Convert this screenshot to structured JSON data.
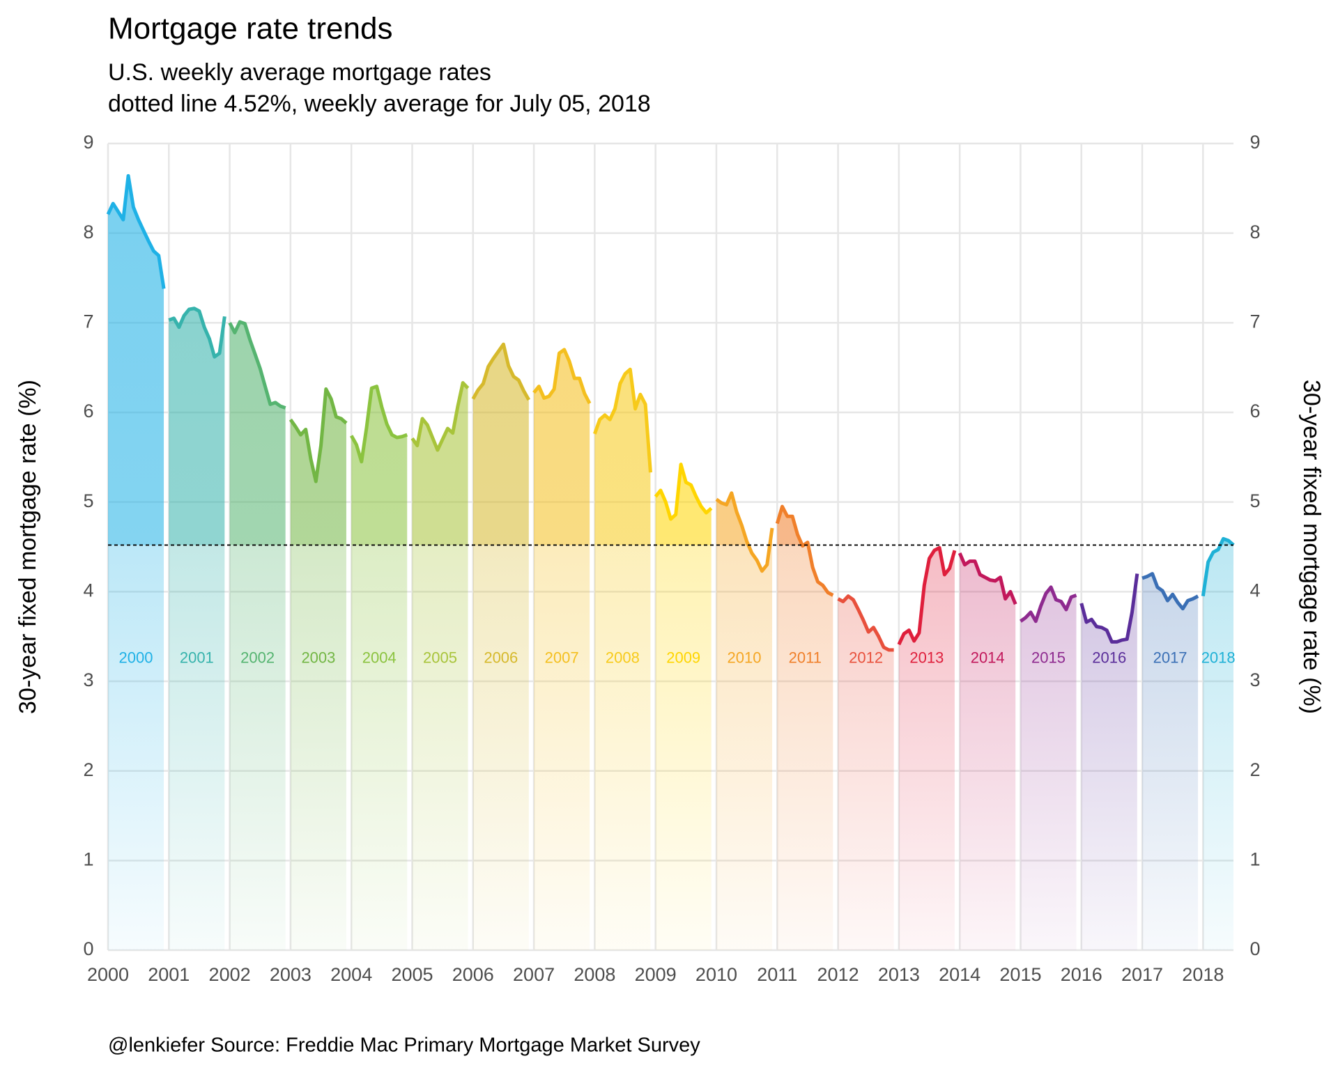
{
  "chart_data": {
    "type": "line",
    "title": "Mortgage rate trends",
    "subtitle": [
      "U.S. weekly average mortgage rates",
      "dotted line 4.52%, weekly average for July 05, 2018"
    ],
    "ylabel": "30-year fixed mortgage rate (%)",
    "y2label": "30-year fixed mortgage rate (%)",
    "caption": "@lenkiefer Source: Freddie Mac Primary Mortgage Market Survey",
    "reference": {
      "value": 4.52
    },
    "xlim": [
      2000,
      2018.5
    ],
    "xticks": [
      2000,
      2001,
      2002,
      2003,
      2004,
      2005,
      2006,
      2007,
      2008,
      2009,
      2010,
      2011,
      2012,
      2013,
      2014,
      2015,
      2016,
      2017,
      2018
    ],
    "ylim": [
      0,
      9
    ],
    "yticks": [
      0,
      1,
      2,
      3,
      4,
      5,
      6,
      7,
      8,
      9
    ],
    "y2lim": [
      0,
      9
    ],
    "y2ticks": [
      0,
      1,
      2,
      3,
      4,
      5,
      6,
      7,
      8,
      9
    ],
    "grid": true,
    "area": true,
    "series": [
      {
        "name": "2000",
        "color": "#1fb1e6",
        "x": [
          2000,
          2000.083,
          2000.167,
          2000.25,
          2000.333,
          2000.417,
          2000.5,
          2000.583,
          2000.667,
          2000.75,
          2000.833,
          2000.917
        ],
        "values": [
          8.21,
          8.33,
          8.24,
          8.15,
          8.64,
          8.29,
          8.15,
          8.03,
          7.91,
          7.8,
          7.75,
          7.38
        ]
      },
      {
        "name": "2001",
        "color": "#36b3ac",
        "x": [
          2001,
          2001.083,
          2001.167,
          2001.25,
          2001.333,
          2001.417,
          2001.5,
          2001.583,
          2001.667,
          2001.75,
          2001.833,
          2001.917
        ],
        "values": [
          7.03,
          7.05,
          6.95,
          7.08,
          7.15,
          7.16,
          7.13,
          6.95,
          6.82,
          6.62,
          6.66,
          7.07
        ]
      },
      {
        "name": "2002",
        "color": "#55b470",
        "x": [
          2002,
          2002.083,
          2002.167,
          2002.25,
          2002.333,
          2002.417,
          2002.5,
          2002.583,
          2002.667,
          2002.75,
          2002.833,
          2002.917
        ],
        "values": [
          7.0,
          6.89,
          7.01,
          6.99,
          6.81,
          6.65,
          6.49,
          6.29,
          6.09,
          6.11,
          6.07,
          6.05
        ]
      },
      {
        "name": "2003",
        "color": "#72b644",
        "x": [
          2003,
          2003.083,
          2003.167,
          2003.25,
          2003.333,
          2003.417,
          2003.5,
          2003.583,
          2003.667,
          2003.75,
          2003.833,
          2003.917
        ],
        "values": [
          5.92,
          5.84,
          5.75,
          5.81,
          5.48,
          5.23,
          5.63,
          6.26,
          6.15,
          5.95,
          5.93,
          5.88
        ]
      },
      {
        "name": "2004",
        "color": "#8bc33f",
        "x": [
          2004,
          2004.083,
          2004.167,
          2004.25,
          2004.333,
          2004.417,
          2004.5,
          2004.583,
          2004.667,
          2004.75,
          2004.833,
          2004.917
        ],
        "values": [
          5.74,
          5.64,
          5.45,
          5.83,
          6.27,
          6.29,
          6.06,
          5.87,
          5.75,
          5.72,
          5.73,
          5.75
        ]
      },
      {
        "name": "2005",
        "color": "#a8c43a",
        "x": [
          2005,
          2005.083,
          2005.167,
          2005.25,
          2005.333,
          2005.417,
          2005.5,
          2005.583,
          2005.667,
          2005.75,
          2005.833,
          2005.917
        ],
        "values": [
          5.71,
          5.63,
          5.93,
          5.86,
          5.72,
          5.58,
          5.7,
          5.82,
          5.77,
          6.07,
          6.33,
          6.27
        ]
      },
      {
        "name": "2006",
        "color": "#d6b92c",
        "x": [
          2006,
          2006.083,
          2006.167,
          2006.25,
          2006.333,
          2006.417,
          2006.5,
          2006.583,
          2006.667,
          2006.75,
          2006.833,
          2006.917
        ],
        "values": [
          6.15,
          6.25,
          6.32,
          6.51,
          6.6,
          6.68,
          6.76,
          6.52,
          6.4,
          6.36,
          6.24,
          6.14
        ]
      },
      {
        "name": "2007",
        "color": "#f4bf1e",
        "x": [
          2007,
          2007.083,
          2007.167,
          2007.25,
          2007.333,
          2007.417,
          2007.5,
          2007.583,
          2007.667,
          2007.75,
          2007.833,
          2007.917
        ],
        "values": [
          6.22,
          6.29,
          6.16,
          6.18,
          6.26,
          6.66,
          6.7,
          6.57,
          6.38,
          6.38,
          6.21,
          6.1
        ]
      },
      {
        "name": "2008",
        "color": "#f7ca1a",
        "x": [
          2008,
          2008.083,
          2008.167,
          2008.25,
          2008.333,
          2008.417,
          2008.5,
          2008.583,
          2008.667,
          2008.75,
          2008.833,
          2008.917
        ],
        "values": [
          5.76,
          5.92,
          5.97,
          5.92,
          6.04,
          6.32,
          6.43,
          6.48,
          6.04,
          6.2,
          6.09,
          5.33
        ]
      },
      {
        "name": "2009",
        "color": "#ffd500",
        "x": [
          2009,
          2009.083,
          2009.167,
          2009.25,
          2009.333,
          2009.417,
          2009.5,
          2009.583,
          2009.667,
          2009.75,
          2009.833,
          2009.917
        ],
        "values": [
          5.06,
          5.13,
          5.0,
          4.81,
          4.86,
          5.42,
          5.22,
          5.19,
          5.06,
          4.95,
          4.88,
          4.93
        ]
      },
      {
        "name": "2010",
        "color": "#f5a623",
        "x": [
          2010,
          2010.083,
          2010.167,
          2010.25,
          2010.333,
          2010.417,
          2010.5,
          2010.583,
          2010.667,
          2010.75,
          2010.833,
          2010.917
        ],
        "values": [
          5.03,
          4.99,
          4.97,
          5.1,
          4.89,
          4.74,
          4.56,
          4.43,
          4.35,
          4.23,
          4.3,
          4.71
        ]
      },
      {
        "name": "2011",
        "color": "#f07f2a",
        "x": [
          2011,
          2011.083,
          2011.167,
          2011.25,
          2011.333,
          2011.417,
          2011.5,
          2011.583,
          2011.667,
          2011.75,
          2011.833,
          2011.917
        ],
        "values": [
          4.76,
          4.95,
          4.84,
          4.84,
          4.64,
          4.51,
          4.55,
          4.27,
          4.11,
          4.07,
          3.99,
          3.96
        ]
      },
      {
        "name": "2012",
        "color": "#e8503c",
        "x": [
          2012,
          2012.083,
          2012.167,
          2012.25,
          2012.333,
          2012.417,
          2012.5,
          2012.583,
          2012.667,
          2012.75,
          2012.833,
          2012.917
        ],
        "values": [
          3.92,
          3.89,
          3.95,
          3.91,
          3.8,
          3.68,
          3.55,
          3.6,
          3.5,
          3.38,
          3.35,
          3.35
        ]
      },
      {
        "name": "2013",
        "color": "#df1f3c",
        "x": [
          2013,
          2013.083,
          2013.167,
          2013.25,
          2013.333,
          2013.417,
          2013.5,
          2013.583,
          2013.667,
          2013.75,
          2013.833,
          2013.917
        ],
        "values": [
          3.41,
          3.53,
          3.57,
          3.45,
          3.54,
          4.07,
          4.37,
          4.46,
          4.49,
          4.19,
          4.26,
          4.46
        ]
      },
      {
        "name": "2014",
        "color": "#c2185b",
        "x": [
          2014,
          2014.083,
          2014.167,
          2014.25,
          2014.333,
          2014.417,
          2014.5,
          2014.583,
          2014.667,
          2014.75,
          2014.833,
          2014.917
        ],
        "values": [
          4.43,
          4.3,
          4.34,
          4.34,
          4.19,
          4.16,
          4.13,
          4.12,
          4.16,
          3.92,
          4.0,
          3.86
        ]
      },
      {
        "name": "2015",
        "color": "#8e2a8f",
        "x": [
          2015,
          2015.083,
          2015.167,
          2015.25,
          2015.333,
          2015.417,
          2015.5,
          2015.583,
          2015.667,
          2015.75,
          2015.833,
          2015.917
        ],
        "values": [
          3.67,
          3.71,
          3.77,
          3.67,
          3.84,
          3.98,
          4.05,
          3.91,
          3.89,
          3.8,
          3.94,
          3.96
        ]
      },
      {
        "name": "2016",
        "color": "#5a2d9a",
        "x": [
          2016,
          2016.083,
          2016.167,
          2016.25,
          2016.333,
          2016.417,
          2016.5,
          2016.583,
          2016.667,
          2016.75,
          2016.833,
          2016.917
        ],
        "values": [
          3.87,
          3.66,
          3.69,
          3.61,
          3.6,
          3.57,
          3.44,
          3.44,
          3.46,
          3.47,
          3.77,
          4.2
        ]
      },
      {
        "name": "2017",
        "color": "#3a6fb5",
        "x": [
          2017,
          2017.083,
          2017.167,
          2017.25,
          2017.333,
          2017.417,
          2017.5,
          2017.583,
          2017.667,
          2017.75,
          2017.833,
          2017.917
        ],
        "values": [
          4.15,
          4.17,
          4.2,
          4.05,
          4.01,
          3.9,
          3.97,
          3.88,
          3.81,
          3.9,
          3.92,
          3.95
        ]
      },
      {
        "name": "2018",
        "color": "#1fb1d6",
        "x": [
          2018,
          2018.083,
          2018.167,
          2018.25,
          2018.333,
          2018.417,
          2018.5
        ],
        "values": [
          3.95,
          4.33,
          4.44,
          4.47,
          4.59,
          4.57,
          4.52
        ]
      }
    ]
  }
}
